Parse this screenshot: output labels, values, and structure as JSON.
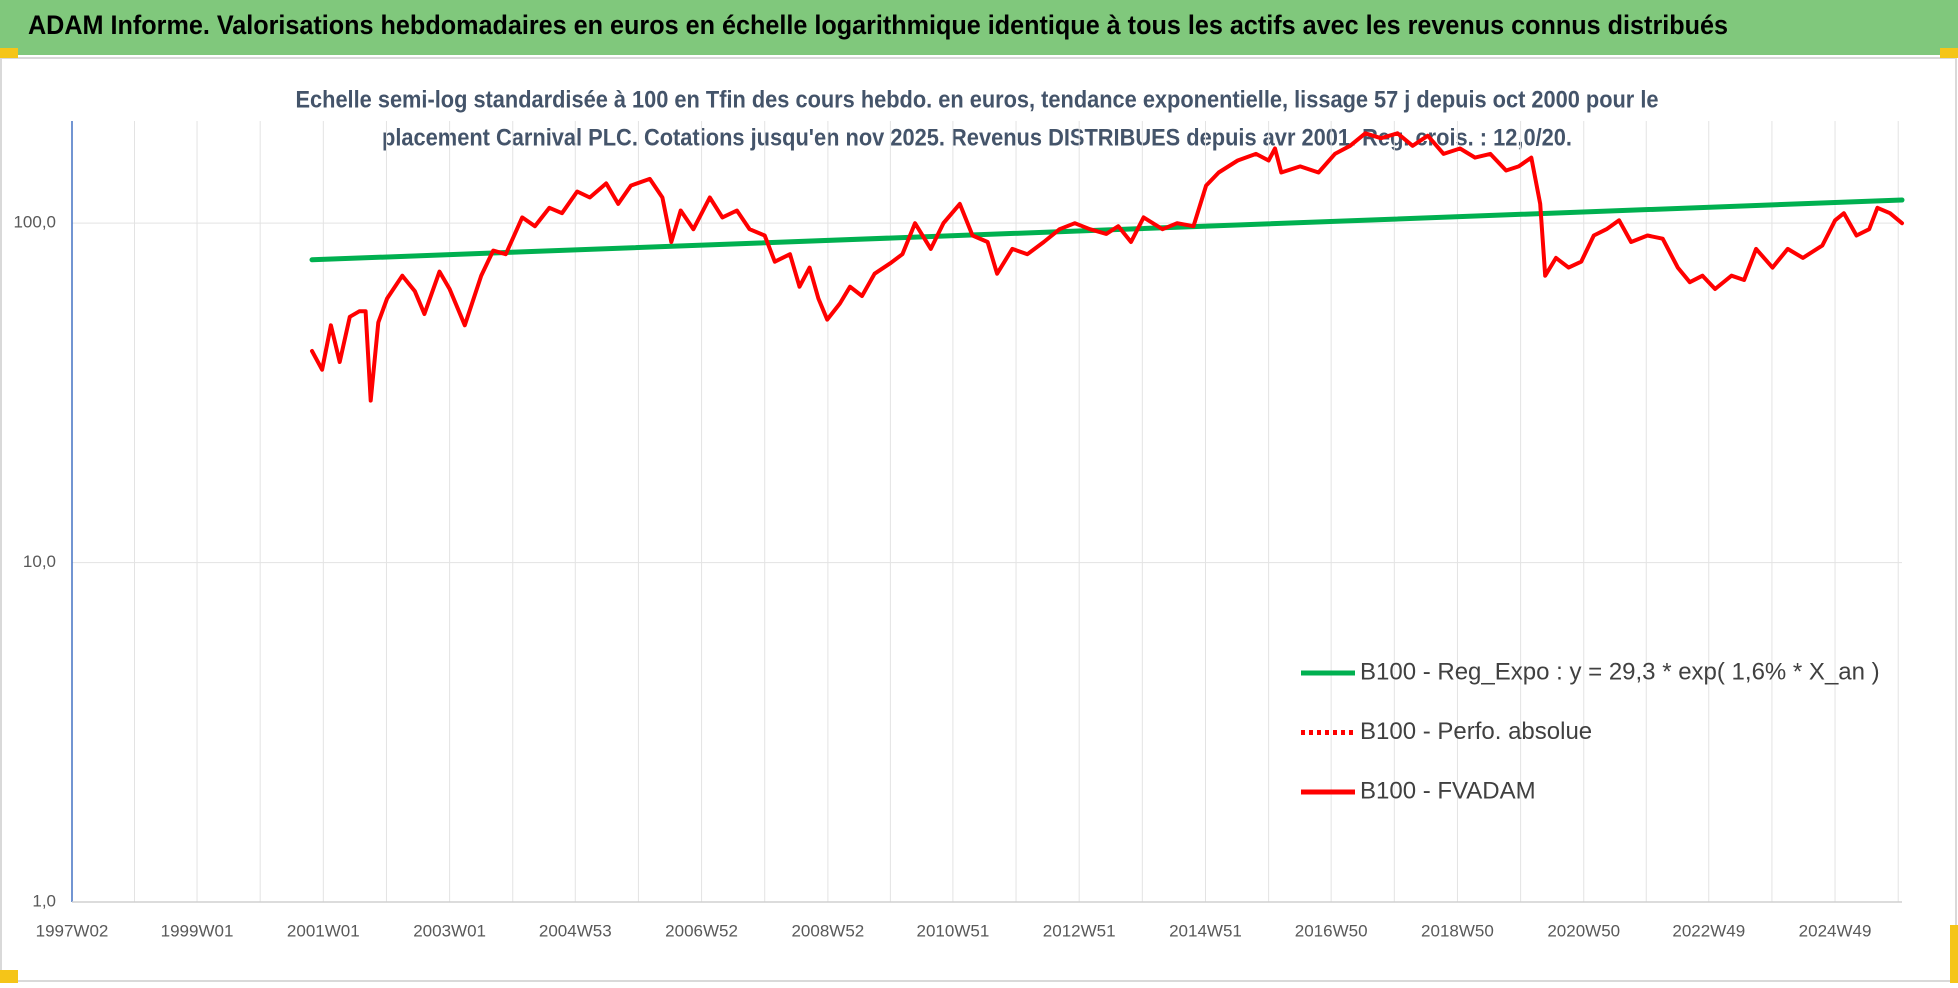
{
  "chart_data": {
    "type": "line",
    "title": "ADAM Informe. Valorisations hebdomadaires en euros en échelle logarithmique identique à tous les actifs avec les revenus connus distribués",
    "subtitle": [
      "Echelle semi-log standardisée à 100 en Tfin des cours hebdo. en euros, tendance exponentielle, lissage 57 j depuis oct 2000 pour le",
      "placement Carnival PLC. Cotations jusqu'en nov 2025. Revenus DISTRIBUES depuis avr 2001. Reg. crois. : 12,0/20."
    ],
    "xlim": [
      1997.02,
      2026.0
    ],
    "xticks": [
      {
        "value": 1997.02,
        "label": "1997W02"
      },
      {
        "value": 1999.0,
        "label": "1999W01"
      },
      {
        "value": 2001.0,
        "label": "2001W01"
      },
      {
        "value": 2003.0,
        "label": "2003W01"
      },
      {
        "value": 2004.99,
        "label": "2004W53"
      },
      {
        "value": 2006.99,
        "label": "2006W52"
      },
      {
        "value": 2008.99,
        "label": "2008W52"
      },
      {
        "value": 2010.97,
        "label": "2010W51"
      },
      {
        "value": 2012.97,
        "label": "2012W51"
      },
      {
        "value": 2014.97,
        "label": "2014W51"
      },
      {
        "value": 2016.96,
        "label": "2016W50"
      },
      {
        "value": 2018.96,
        "label": "2018W50"
      },
      {
        "value": 2020.96,
        "label": "2020W50"
      },
      {
        "value": 2022.94,
        "label": "2022W49"
      },
      {
        "value": 2024.94,
        "label": "2024W49"
      }
    ],
    "xgrid_minor": [
      1998.01,
      2000.0,
      2002.0,
      2004.0,
      2005.99,
      2007.99,
      2009.98,
      2011.97,
      2013.97,
      2015.97,
      2017.96,
      2019.96,
      2021.95,
      2023.94,
      2025.94
    ],
    "ylim": [
      1,
      200
    ],
    "yticks": [
      {
        "value": 1,
        "label": "1,0"
      },
      {
        "value": 10,
        "label": "10,0"
      },
      {
        "value": 100,
        "label": "100,0"
      }
    ],
    "log_scale": true,
    "grid": true,
    "legend": "lower right",
    "series": [
      {
        "name": "B100 - Reg_Expo : y = 29,3 * exp( 1,6% *  X_an )",
        "color": "#00b050",
        "style": "solid",
        "x": [
          2000.82,
          2026.0
        ],
        "values": [
          78,
          117
        ]
      },
      {
        "name": "B100 - Perfo. absolue",
        "color": "#ff0000",
        "style": "dotted",
        "x": [],
        "values": []
      },
      {
        "name": "B100 - FVADAM",
        "color": "#ff0000",
        "style": "solid",
        "x": [
          2000.82,
          2000.98,
          2001.12,
          2001.26,
          2001.42,
          2001.57,
          2001.67,
          2001.75,
          2001.87,
          2002.01,
          2002.25,
          2002.45,
          2002.6,
          2002.84,
          2003.0,
          2003.24,
          2003.5,
          2003.69,
          2003.89,
          2004.15,
          2004.35,
          2004.58,
          2004.78,
          2005.02,
          2005.22,
          2005.48,
          2005.67,
          2005.87,
          2006.17,
          2006.37,
          2006.51,
          2006.66,
          2006.86,
          2007.12,
          2007.32,
          2007.55,
          2007.75,
          2007.99,
          2008.15,
          2008.39,
          2008.54,
          2008.7,
          2008.84,
          2008.98,
          2009.18,
          2009.34,
          2009.53,
          2009.73,
          2009.97,
          2010.17,
          2010.37,
          2010.62,
          2010.82,
          2011.08,
          2011.28,
          2011.52,
          2011.67,
          2011.91,
          2012.15,
          2012.41,
          2012.66,
          2012.9,
          2013.14,
          2013.4,
          2013.59,
          2013.79,
          2013.99,
          2014.29,
          2014.52,
          2014.78,
          2014.98,
          2015.18,
          2015.48,
          2015.77,
          2015.97,
          2016.07,
          2016.17,
          2016.47,
          2016.76,
          2017.02,
          2017.26,
          2017.5,
          2017.75,
          2018.01,
          2018.25,
          2018.49,
          2018.74,
          2019.0,
          2019.24,
          2019.48,
          2019.73,
          2019.93,
          2020.13,
          2020.27,
          2020.35,
          2020.52,
          2020.72,
          2020.92,
          2021.12,
          2021.32,
          2021.52,
          2021.71,
          2021.97,
          2022.21,
          2022.45,
          2022.64,
          2022.84,
          2023.04,
          2023.3,
          2023.5,
          2023.69,
          2023.95,
          2024.19,
          2024.43,
          2024.74,
          2024.94,
          2025.08,
          2025.28,
          2025.48,
          2025.61,
          2025.81,
          2026.0
        ],
        "values": [
          42,
          37,
          50,
          39,
          53,
          55,
          55,
          30,
          51,
          60,
          70,
          63,
          54,
          72,
          64,
          50,
          70,
          83,
          81,
          104,
          98,
          111,
          107,
          124,
          119,
          131,
          114,
          129,
          135,
          119,
          88,
          109,
          96,
          119,
          104,
          109,
          96,
          92,
          77,
          81,
          65,
          74,
          60,
          52,
          58,
          65,
          61,
          71,
          76,
          81,
          100,
          84,
          100,
          114,
          92,
          88,
          71,
          84,
          81,
          88,
          96,
          100,
          96,
          93,
          98,
          88,
          104,
          96,
          100,
          98,
          129,
          141,
          153,
          160,
          153,
          166,
          141,
          147,
          141,
          160,
          169,
          184,
          178,
          184,
          169,
          181,
          160,
          166,
          156,
          160,
          143,
          147,
          156,
          114,
          70,
          79,
          74,
          77,
          92,
          96,
          102,
          88,
          92,
          90,
          74,
          67,
          70,
          64,
          70,
          68,
          84,
          74,
          84,
          79,
          86,
          102,
          107,
          92,
          96,
          111,
          107,
          100
        ]
      }
    ]
  }
}
